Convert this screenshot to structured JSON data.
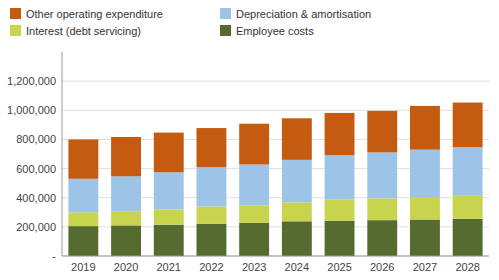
{
  "chart_data": {
    "type": "bar",
    "stacked": true,
    "categories": [
      "2019",
      "2020",
      "2021",
      "2022",
      "2023",
      "2024",
      "2025",
      "2026",
      "2027",
      "2028"
    ],
    "series": [
      {
        "name": "Employee costs",
        "color": "#556b2f",
        "values": [
          205000,
          210000,
          215000,
          220000,
          228000,
          238000,
          242000,
          246000,
          250000,
          255000
        ]
      },
      {
        "name": "Interest (debt servicing)",
        "color": "#c8d44e",
        "values": [
          95000,
          97000,
          105000,
          120000,
          120000,
          130000,
          145000,
          150000,
          155000,
          158000
        ]
      },
      {
        "name": "Depreciation & amortisation",
        "color": "#9dc3e6",
        "values": [
          230000,
          240000,
          255000,
          270000,
          280000,
          292000,
          305000,
          315000,
          325000,
          335000
        ]
      },
      {
        "name": "Other operating expenditure",
        "color": "#c55a11",
        "values": [
          270000,
          270000,
          272000,
          268000,
          280000,
          285000,
          290000,
          285000,
          300000,
          305000
        ]
      }
    ],
    "ylim": [
      0,
      1400000
    ],
    "yticks": [
      {
        "value": 0,
        "label": "-"
      },
      {
        "value": 200000,
        "label": "200,000"
      },
      {
        "value": 400000,
        "label": "400,000"
      },
      {
        "value": 600000,
        "label": "600,000"
      },
      {
        "value": 800000,
        "label": "800,000"
      },
      {
        "value": 1000000,
        "label": "1,000,000"
      },
      {
        "value": 1200000,
        "label": "1,200,000"
      }
    ],
    "grid": true,
    "legend": "upper left"
  }
}
